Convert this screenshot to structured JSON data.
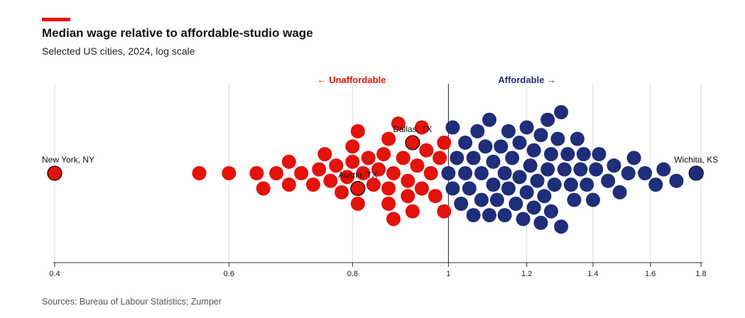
{
  "title": "Median wage relative to affordable-studio wage",
  "subtitle": "Selected US cities, 2024, log scale",
  "source": "Sources: Bureau of Labour Statistics; Zumper",
  "colors": {
    "accent": "#e3120b",
    "unaffordable": "#e3120b",
    "affordable": "#1f2e7a"
  },
  "chart_data": {
    "type": "scatter",
    "scale": "log",
    "xlim": [
      0.4,
      1.8
    ],
    "threshold": 1.0,
    "ticks": [
      "0.4",
      "0.6",
      "0.8",
      "1",
      "1.2",
      "1.4",
      "1.6",
      "1.8"
    ],
    "left_label": "← Unaffordable",
    "right_label": "Affordable →",
    "highlighted": [
      {
        "name": "New York, NY",
        "value": 0.4
      },
      {
        "name": "Austin, TX",
        "value": 0.81
      },
      {
        "name": "Dallas, TX",
        "value": 0.92
      },
      {
        "name": "Wichita, KS",
        "value": 1.78
      }
    ],
    "series": [
      {
        "values": [
          0.4,
          0.56,
          0.6,
          0.64,
          0.65,
          0.67,
          0.69,
          0.69,
          0.71,
          0.73,
          0.74,
          0.75,
          0.76,
          0.77,
          0.78,
          0.79,
          0.8,
          0.8,
          0.81,
          0.81,
          0.81,
          0.82,
          0.83,
          0.84,
          0.85,
          0.86,
          0.87,
          0.87,
          0.87,
          0.88,
          0.88,
          0.89,
          0.9,
          0.91,
          0.91,
          0.92,
          0.92,
          0.93,
          0.94,
          0.94,
          0.95,
          0.96,
          0.97,
          0.98,
          0.99,
          0.99
        ]
      },
      {
        "values": [
          1.0,
          1.01,
          1.01,
          1.02,
          1.03,
          1.04,
          1.04,
          1.05,
          1.06,
          1.06,
          1.07,
          1.08,
          1.08,
          1.09,
          1.1,
          1.1,
          1.11,
          1.11,
          1.12,
          1.13,
          1.14,
          1.14,
          1.15,
          1.15,
          1.16,
          1.17,
          1.18,
          1.18,
          1.19,
          1.2,
          1.2,
          1.21,
          1.22,
          1.22,
          1.23,
          1.24,
          1.24,
          1.25,
          1.26,
          1.26,
          1.27,
          1.27,
          1.28,
          1.29,
          1.3,
          1.3,
          1.31,
          1.32,
          1.33,
          1.34,
          1.35,
          1.36,
          1.37,
          1.38,
          1.4,
          1.41,
          1.42,
          1.45,
          1.47,
          1.49,
          1.52,
          1.54,
          1.58,
          1.62,
          1.65,
          1.7,
          1.78
        ]
      }
    ]
  }
}
